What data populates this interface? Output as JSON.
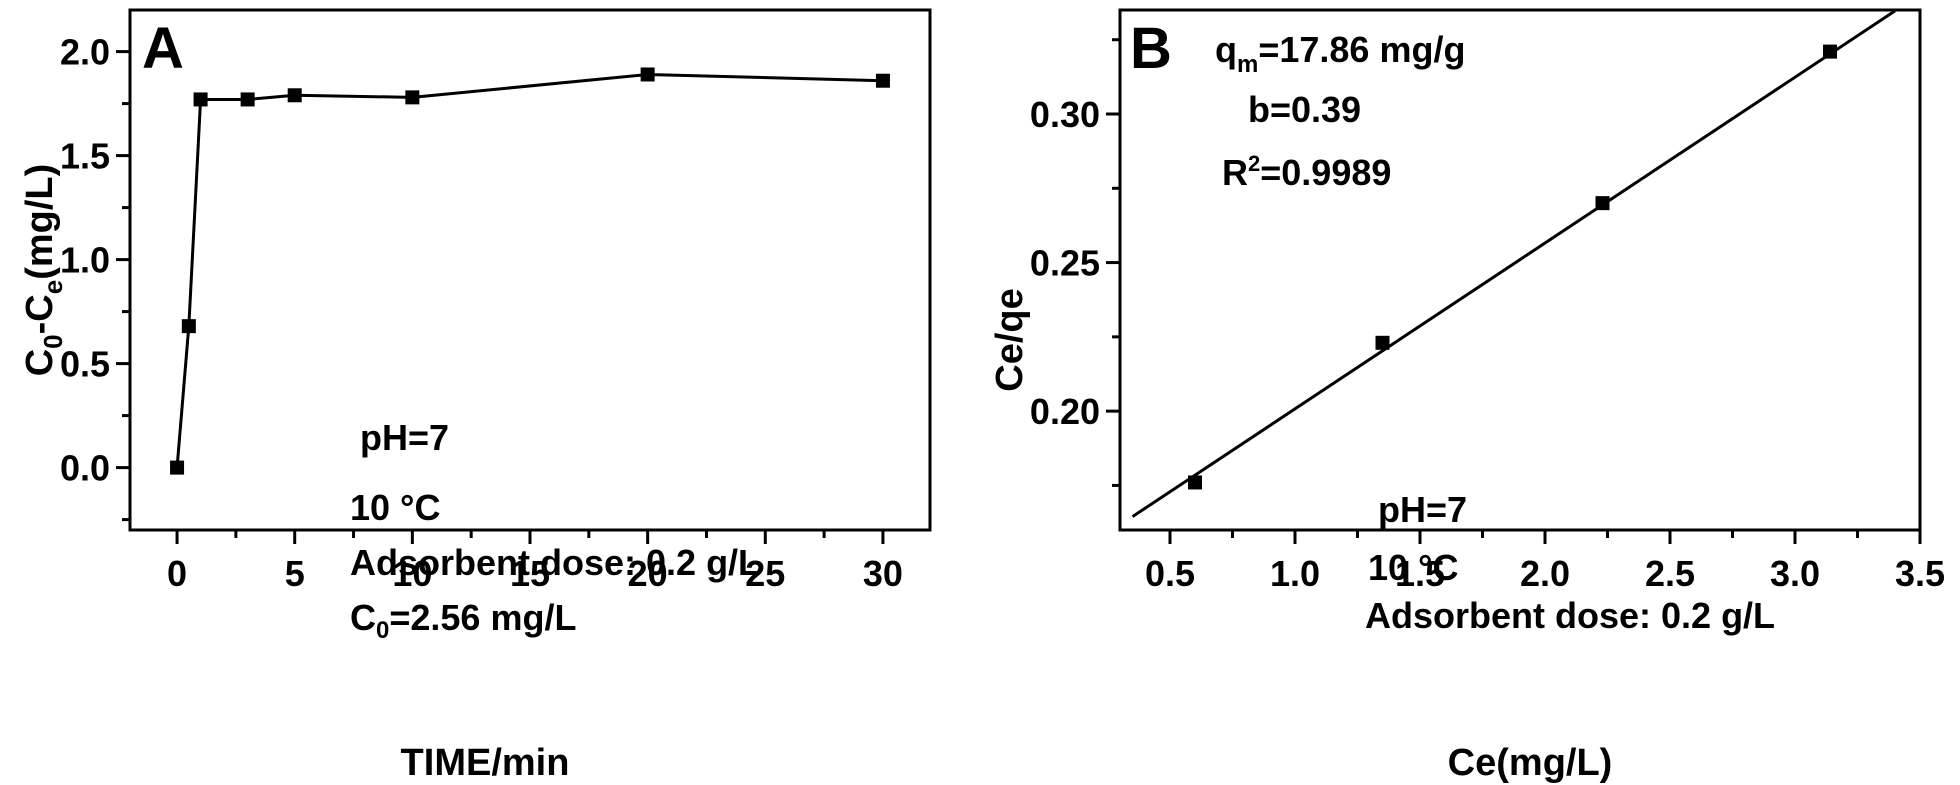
{
  "chart_data": [
    {
      "type": "line",
      "panel_label": "A",
      "xlabel": "TIME/min",
      "ylabel": "C0-Ce(mg/L)",
      "ylabel_main": "C",
      "ylabel_sub1": "0",
      "ylabel_mid": "-C",
      "ylabel_sub2": "e",
      "ylabel_tail": "(mg/L)",
      "xlim": [
        -2,
        32
      ],
      "ylim": [
        -0.3,
        2.2
      ],
      "xticks": [
        "0",
        "5",
        "10",
        "15",
        "20",
        "25",
        "30"
      ],
      "yticks": [
        "0.0",
        "0.5",
        "1.0",
        "1.5",
        "2.0"
      ],
      "xtick_values": [
        0,
        5,
        10,
        15,
        20,
        25,
        30
      ],
      "ytick_values": [
        0.0,
        0.5,
        1.0,
        1.5,
        2.0
      ],
      "series": [
        {
          "x": [
            0,
            0.5,
            1,
            3,
            5,
            10,
            20,
            30
          ],
          "y": [
            0.0,
            0.68,
            1.77,
            1.77,
            1.79,
            1.78,
            1.89,
            1.86
          ],
          "marker": "square"
        }
      ],
      "annotations": {
        "ph": "pH=7",
        "temp": "10 °C",
        "dose": "Adsorbent dose: 0.2 g/L",
        "c0_main": "C",
        "c0_sub": "0",
        "c0_tail": "=2.56 mg/L"
      },
      "grid": false
    },
    {
      "type": "scatter",
      "panel_label": "B",
      "xlabel": "Ce(mg/L)",
      "ylabel": "Ce/qe",
      "xlim": [
        0.3,
        3.5
      ],
      "ylim": [
        0.16,
        0.335
      ],
      "xticks": [
        "0.5",
        "1.0",
        "1.5",
        "2.0",
        "2.5",
        "3.0",
        "3.5"
      ],
      "yticks": [
        "0.20",
        "0.25",
        "0.30"
      ],
      "xtick_values": [
        0.5,
        1.0,
        1.5,
        2.0,
        2.5,
        3.0,
        3.5
      ],
      "ytick_values": [
        0.2,
        0.25,
        0.3
      ],
      "series": [
        {
          "x": [
            0.6,
            1.35,
            2.23,
            3.14
          ],
          "y": [
            0.176,
            0.223,
            0.27,
            0.321
          ],
          "marker": "square"
        }
      ],
      "fit_line": {
        "x": [
          0.35,
          3.4
        ],
        "y": [
          0.1645,
          0.3347
        ]
      },
      "annotations": {
        "qm_main": "q",
        "qm_sub": "m",
        "qm_tail": "=17.86 mg/g",
        "b": "b=0.39",
        "r2_main": "R",
        "r2_sup": "2",
        "r2_tail": "=0.9989",
        "ph": "pH=7",
        "temp": "10 °C",
        "dose": "Adsorbent dose: 0.2 g/L"
      },
      "grid": false
    }
  ]
}
